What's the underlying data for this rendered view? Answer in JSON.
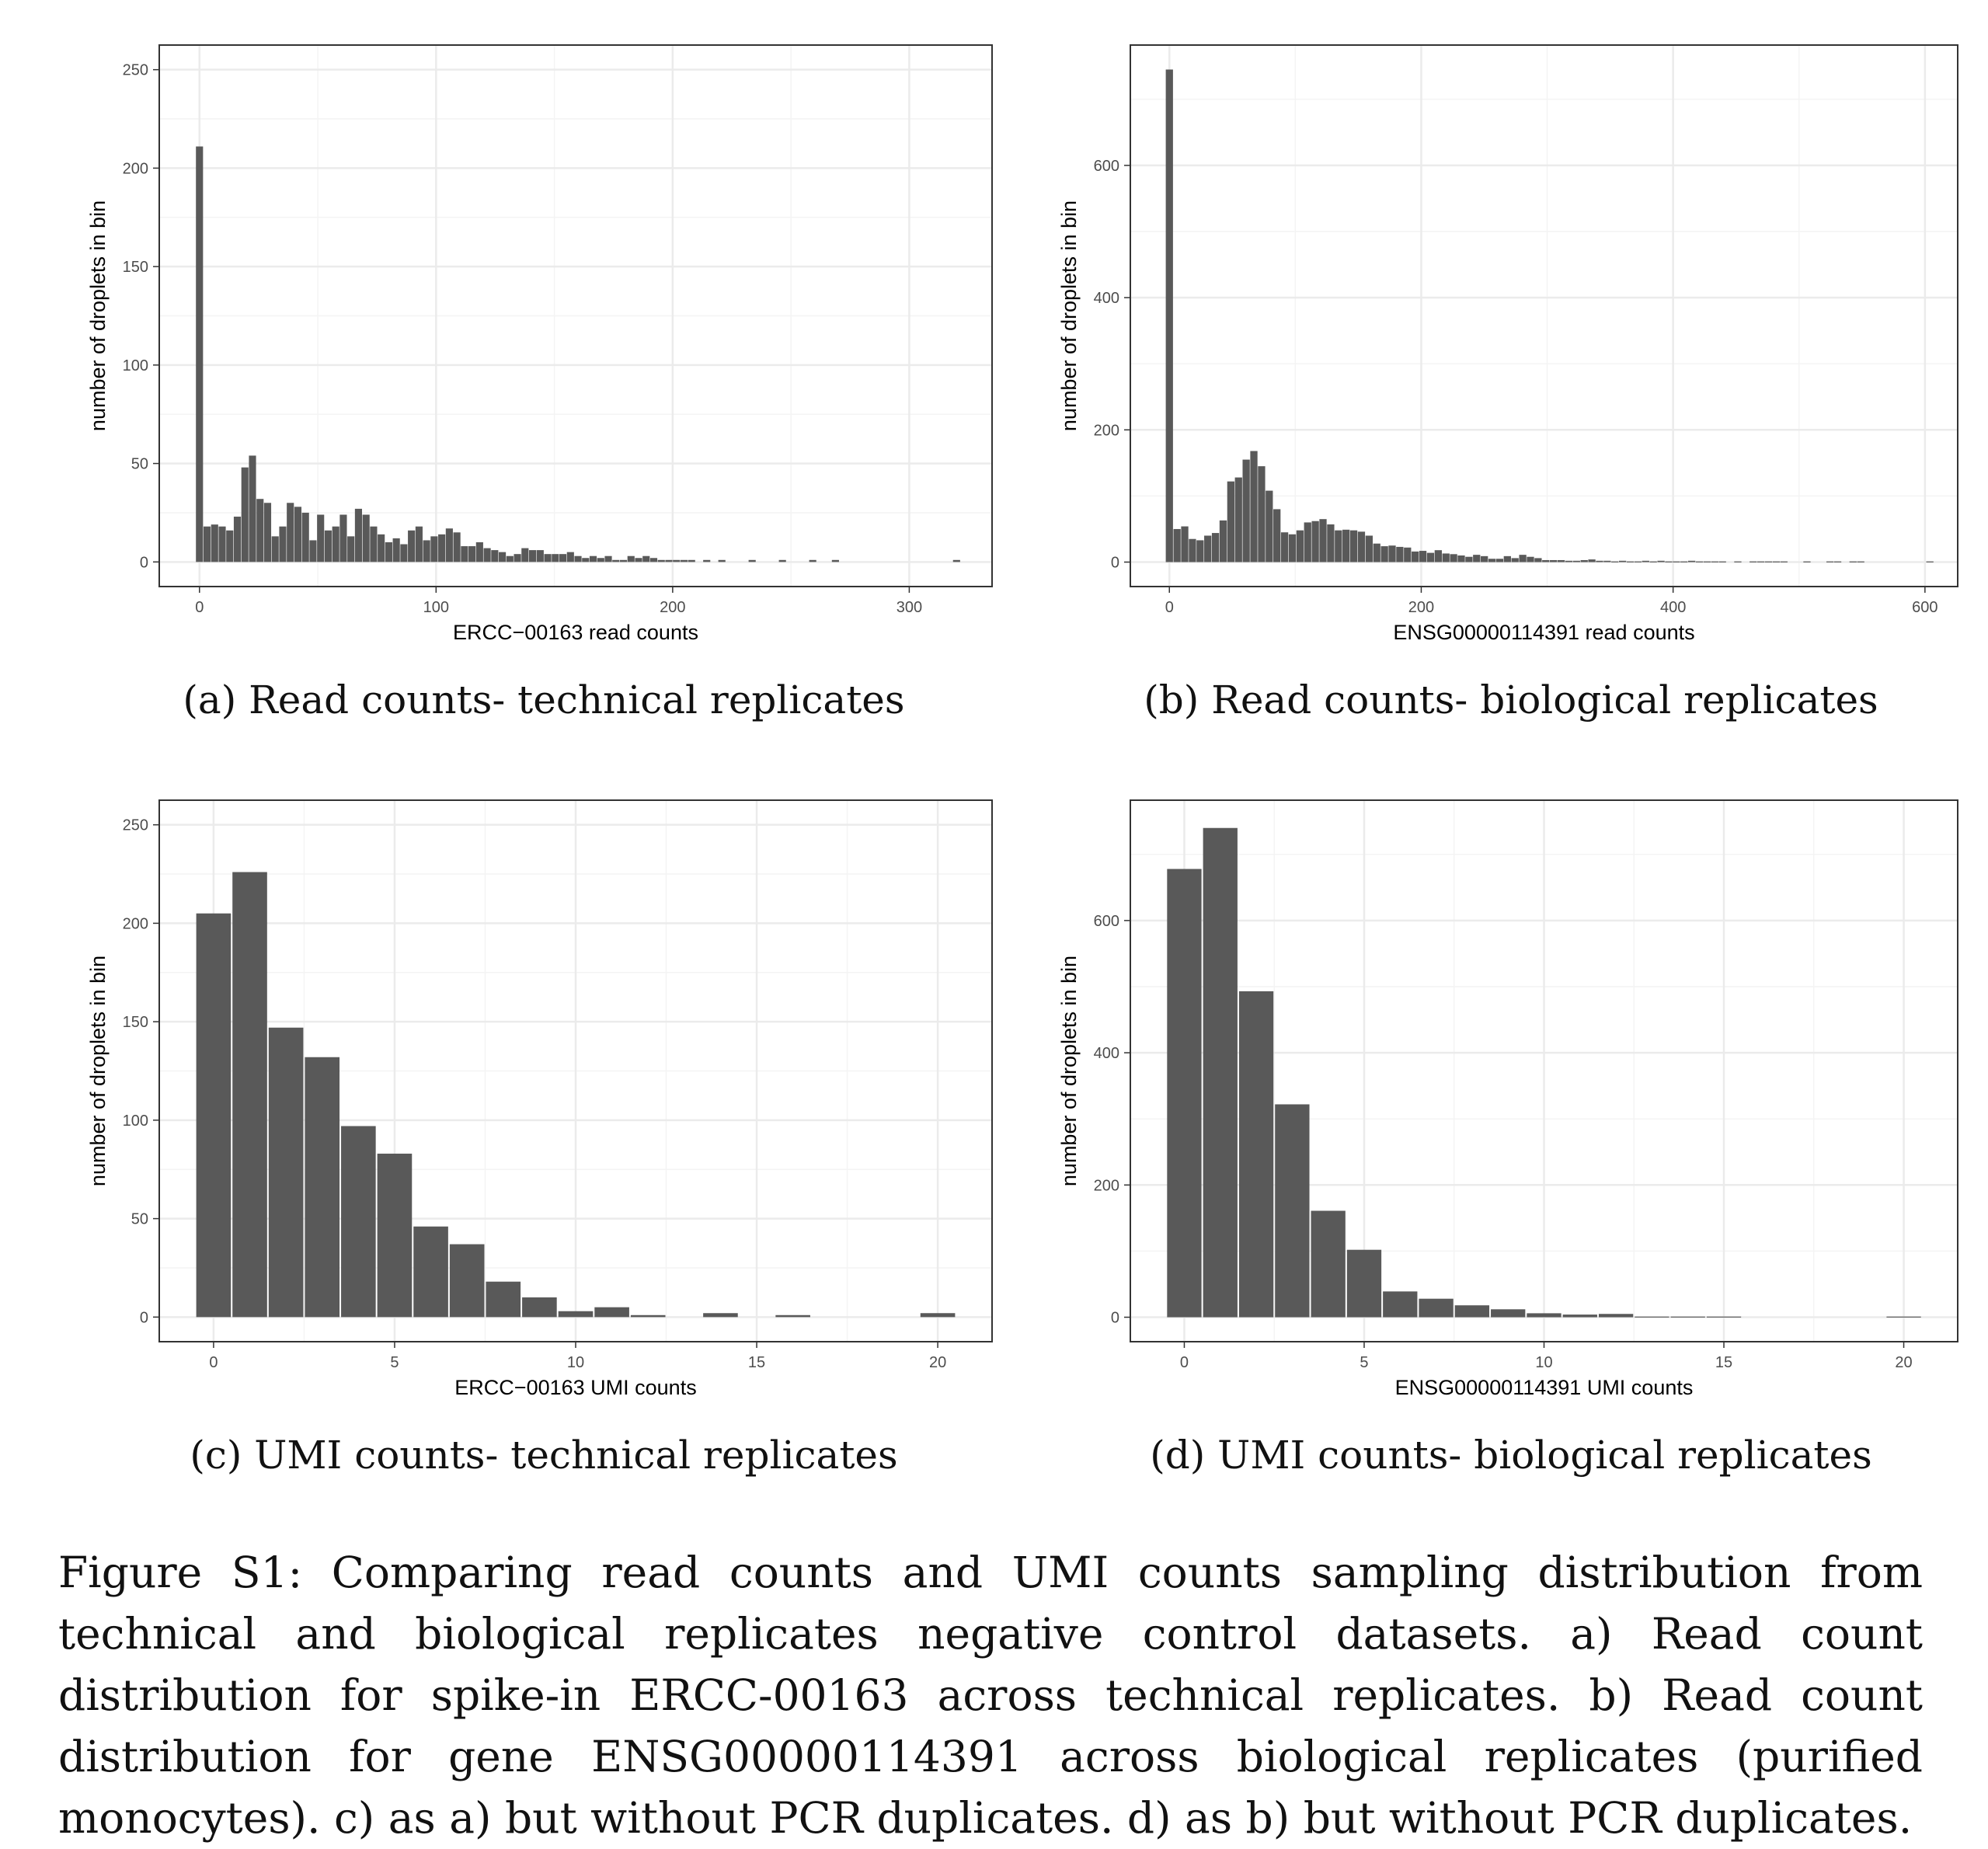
{
  "chart_data": [
    {
      "id": "a",
      "type": "bar",
      "subcaption": "(a) Read counts- technical replicates",
      "xlabel": "ERCC−00163 read counts",
      "ylabel": "number of droplets in bin",
      "xlim": [
        -17,
        335
      ],
      "ylim": [
        -12.5,
        262.5
      ],
      "xticks": [
        0,
        100,
        200,
        300
      ],
      "yticks": [
        0,
        50,
        100,
        150,
        200,
        250
      ],
      "binwidth": 3.2,
      "x_start": 0,
      "values": [
        211,
        18,
        19,
        18,
        16,
        23,
        48,
        54,
        32,
        30,
        13,
        18,
        30,
        28,
        25,
        11,
        24,
        16,
        18,
        24,
        13,
        27,
        24,
        18,
        14,
        10,
        12,
        9,
        16,
        18,
        11,
        13,
        14,
        17,
        15,
        8,
        8,
        10,
        7,
        6,
        5,
        3,
        4,
        7,
        6,
        6,
        4,
        4,
        4,
        5,
        3,
        2,
        3,
        2,
        3,
        1,
        1,
        3,
        2,
        3,
        2,
        1,
        1,
        1,
        1,
        1,
        0,
        1,
        0,
        1,
        0,
        0,
        0,
        1,
        0,
        0,
        0,
        1,
        0,
        0,
        0,
        1,
        0,
        0,
        1,
        0,
        0,
        0,
        0,
        0,
        0,
        0,
        0,
        0,
        0,
        0,
        0,
        0,
        0,
        0,
        1
      ]
    },
    {
      "id": "b",
      "type": "bar",
      "subcaption": "(b) Read counts- biological replicates",
      "xlabel": "ENSG00000114391 read counts",
      "ylabel": "number of droplets in bin",
      "xlim": [
        -31,
        626
      ],
      "ylim": [
        -37,
        782
      ],
      "xticks": [
        0,
        200,
        400,
        600
      ],
      "yticks": [
        0,
        200,
        400,
        600
      ],
      "binwidth": 6.1,
      "x_start": 0,
      "values": [
        745,
        50,
        54,
        35,
        33,
        40,
        44,
        63,
        122,
        128,
        155,
        168,
        145,
        108,
        80,
        45,
        42,
        48,
        60,
        62,
        65,
        57,
        48,
        49,
        48,
        46,
        40,
        28,
        24,
        25,
        23,
        22,
        16,
        17,
        14,
        18,
        13,
        12,
        10,
        8,
        11,
        9,
        5,
        5,
        9,
        6,
        11,
        8,
        6,
        3,
        3,
        3,
        2,
        2,
        3,
        4,
        2,
        2,
        1,
        2,
        1,
        1,
        2,
        1,
        2,
        1,
        1,
        1,
        2,
        1,
        1,
        1,
        1,
        0,
        1,
        0,
        1,
        1,
        1,
        1,
        1,
        0,
        0,
        1,
        0,
        0,
        1,
        1,
        0,
        1,
        1,
        0,
        0,
        0,
        0,
        0,
        0,
        0,
        0,
        1
      ]
    },
    {
      "id": "c",
      "type": "bar",
      "subcaption": "(c) UMI counts- technical replicates",
      "xlabel": "ERCC−00163 UMI counts",
      "ylabel": "number of droplets in bin",
      "xlim": [
        -1.5,
        21.5
      ],
      "ylim": [
        -12.5,
        262.5
      ],
      "xticks": [
        0,
        5,
        10,
        15,
        20
      ],
      "yticks": [
        0,
        50,
        100,
        150,
        200,
        250
      ],
      "binwidth": 1,
      "x_start": 0,
      "values": [
        205,
        226,
        147,
        132,
        97,
        83,
        46,
        37,
        18,
        10,
        3,
        5,
        1,
        0,
        2,
        0,
        1,
        0,
        0,
        0,
        2
      ]
    },
    {
      "id": "d",
      "type": "bar",
      "subcaption": "(d) UMI counts- biological replicates",
      "xlabel": "ENSG00000114391 UMI counts",
      "ylabel": "number of droplets in bin",
      "xlim": [
        -1.5,
        21.5
      ],
      "ylim": [
        -37,
        782
      ],
      "xticks": [
        0,
        5,
        10,
        15,
        20
      ],
      "yticks": [
        0,
        200,
        400,
        600
      ],
      "binwidth": 1,
      "x_start": 0,
      "values": [
        678,
        740,
        493,
        322,
        161,
        102,
        39,
        28,
        18,
        12,
        6,
        4,
        5,
        1,
        1,
        1,
        0,
        0,
        0,
        0,
        1
      ]
    }
  ],
  "caption": "Figure S1: Comparing read counts and UMI counts sampling distribution from technical and biological replicates negative control datasets. a) Read count distribution for spike-in ERCC-00163 across technical replicates. b) Read count distribution for gene ENSG00000114391 across biological replicates (purified monocytes). c) as a) but without PCR duplicates. d) as b) but without PCR duplicates.",
  "colors": {
    "bar": "#595959",
    "grid": "#ebebeb",
    "panel_border": "#333333"
  }
}
